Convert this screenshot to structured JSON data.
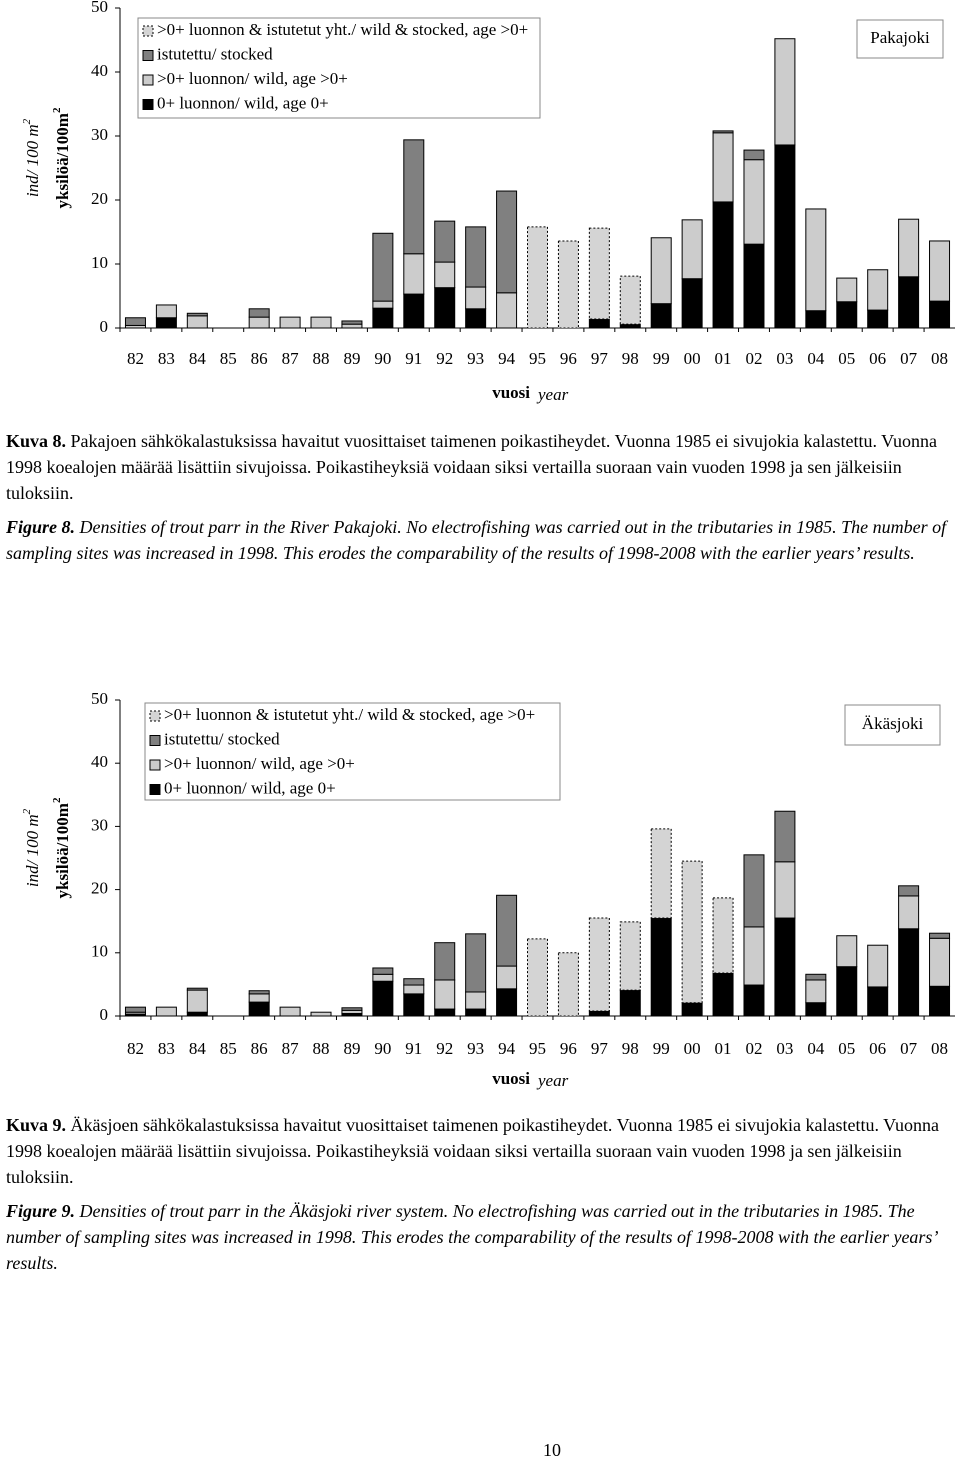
{
  "chart_data": [
    {
      "type": "stacked_bar",
      "site_label": "Pakajoki",
      "xlabel": "vuosi",
      "xlabel_en": "year",
      "ylabel_en": "ind/ 100 m",
      "ylabel_en_sup": "2",
      "ylabel": "yksilöä/100m",
      "ylabel_sup": "2",
      "categories": [
        "82",
        "83",
        "84",
        "85",
        "86",
        "87",
        "88",
        "89",
        "90",
        "91",
        "92",
        "93",
        "94",
        "95",
        "96",
        "97",
        "98",
        "99",
        "00",
        "01",
        "02",
        "03",
        "04",
        "05",
        "06",
        "07",
        "08"
      ],
      "ylim": [
        0,
        50
      ],
      "yticks": [
        0,
        10,
        20,
        30,
        40,
        50
      ],
      "series": [
        {
          "name": ">0+ luonnon & istutetut yht./ wild & stocked, age >0+",
          "color": "#d4d4d4",
          "dotted": true,
          "values": [
            null,
            null,
            null,
            null,
            null,
            null,
            null,
            null,
            null,
            null,
            null,
            null,
            null,
            15.8,
            13.6,
            14.2,
            7.5,
            null,
            null,
            null,
            null,
            null,
            null,
            null,
            null,
            null,
            null
          ]
        },
        {
          "name": "istutettu/ stocked",
          "color": "#808080",
          "values": [
            1.2,
            null,
            0.4,
            null,
            1.3,
            null,
            null,
            0.5,
            10.6,
            17.8,
            6.4,
            9.4,
            15.9,
            null,
            null,
            null,
            null,
            null,
            null,
            0.3,
            1.5,
            null,
            null,
            null,
            null,
            null,
            null
          ]
        },
        {
          "name": ">0+ luonnon/ wild, age >0+",
          "color": "#cccccc",
          "values": [
            0.4,
            2.0,
            1.9,
            null,
            1.7,
            1.7,
            1.7,
            0.6,
            1.1,
            6.3,
            4.0,
            3.4,
            5.5,
            null,
            null,
            null,
            null,
            10.3,
            9.2,
            10.8,
            13.2,
            16.6,
            15.9,
            3.7,
            6.3,
            9.0,
            9.4
          ]
        },
        {
          "name": "0+ luonnon/ wild, age 0+",
          "color": "#000000",
          "values": [
            null,
            1.6,
            null,
            null,
            null,
            null,
            null,
            null,
            3.1,
            5.3,
            6.3,
            3.0,
            null,
            null,
            null,
            1.4,
            0.6,
            3.8,
            7.7,
            19.7,
            13.1,
            28.6,
            2.7,
            4.1,
            2.8,
            8.0,
            4.2
          ]
        }
      ]
    },
    {
      "type": "stacked_bar",
      "site_label": "Äkäsjoki",
      "xlabel": "vuosi",
      "xlabel_en": "year",
      "ylabel_en": "ind/ 100 m",
      "ylabel_en_sup": "2",
      "ylabel": "yksilöä/100m",
      "ylabel_sup": "2",
      "categories": [
        "82",
        "83",
        "84",
        "85",
        "86",
        "87",
        "88",
        "89",
        "90",
        "91",
        "92",
        "93",
        "94",
        "95",
        "96",
        "97",
        "98",
        "99",
        "00",
        "01",
        "02",
        "03",
        "04",
        "05",
        "06",
        "07",
        "08"
      ],
      "ylim": [
        0,
        50
      ],
      "yticks": [
        0,
        10,
        20,
        30,
        40,
        50
      ],
      "series": [
        {
          "name": ">0+ luonnon & istutetut yht./ wild & stocked, age >0+",
          "color": "#d4d4d4",
          "dotted": true,
          "values": [
            null,
            null,
            null,
            null,
            null,
            null,
            null,
            null,
            null,
            null,
            null,
            null,
            null,
            12.2,
            10.0,
            14.7,
            10.8,
            14.1,
            22.4,
            11.9,
            null,
            null,
            null,
            null,
            null,
            null,
            null
          ]
        },
        {
          "name": "istutettu/ stocked",
          "color": "#808080",
          "values": [
            0.8,
            null,
            0.3,
            null,
            0.5,
            null,
            null,
            0.4,
            1.0,
            1.0,
            5.9,
            9.2,
            11.2,
            null,
            null,
            null,
            null,
            null,
            null,
            null,
            11.4,
            8.0,
            0.9,
            null,
            null,
            1.6,
            0.8
          ]
        },
        {
          "name": ">0+ luonnon/ wild, age >0+",
          "color": "#cccccc",
          "values": [
            0.3,
            1.4,
            3.5,
            null,
            1.3,
            1.4,
            0.6,
            0.5,
            1.1,
            1.4,
            4.6,
            2.7,
            3.6,
            null,
            null,
            null,
            null,
            null,
            null,
            null,
            9.2,
            8.9,
            3.6,
            4.9,
            6.6,
            5.2,
            7.6
          ]
        },
        {
          "name": "0+ luonnon/ wild, age 0+",
          "color": "#000000",
          "values": [
            0.3,
            null,
            0.6,
            null,
            2.2,
            null,
            null,
            0.4,
            5.5,
            3.5,
            1.1,
            1.1,
            4.3,
            null,
            null,
            0.8,
            4.1,
            15.5,
            2.1,
            6.8,
            4.9,
            15.5,
            2.1,
            7.8,
            4.6,
            13.8,
            4.7
          ]
        }
      ]
    }
  ],
  "captions": [
    {
      "label": "Kuva 8.",
      "text": " Pakajoen sähkökalastuksissa havaitut vuosittaiset taimenen poikastiheydet. Vuonna 1985 ei sivujokia kalastettu. Vuonna 1998 koealojen määrää lisättiin sivujoissa. Poikastiheyksiä voidaan siksi vertailla suoraan vain vuoden 1998 ja sen jälkeisiin tuloksiin."
    },
    {
      "label": "Figure 8.",
      "text": " Densities of trout parr in the River Pakajoki. No electrofishing was carried out in the tributaries in 1985. The number of sampling sites was increased in 1998. This erodes the comparability of the results of 1998-2008 with the earlier years’ results."
    },
    {
      "label": "Kuva 9.",
      "text": " Äkäsjoen sähkökalastuksissa havaitut vuosittaiset taimenen poikastiheydet. Vuonna 1985 ei sivujokia kalastettu. Vuonna 1998 koealojen määrää lisättiin sivujoissa. Poikastiheyksiä voidaan siksi vertailla suoraan vain vuoden 1998 ja sen jälkeisiin tuloksiin."
    },
    {
      "label": "Figure 9.",
      "text": " Densities of trout parr in the Äkäsjoki river system. No electrofishing was carried out in the tributaries in 1985. The number of sampling sites was increased in 1998. This erodes the comparability of the results of 1998-2008 with the earlier years’ results."
    }
  ],
  "page_number": "10"
}
